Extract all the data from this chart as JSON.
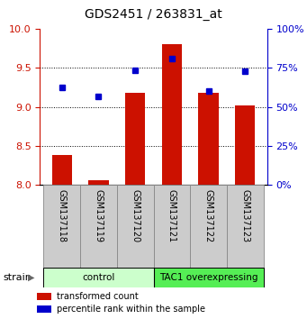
{
  "title": "GDS2451 / 263831_at",
  "samples": [
    "GSM137118",
    "GSM137119",
    "GSM137120",
    "GSM137121",
    "GSM137122",
    "GSM137123"
  ],
  "bar_values": [
    8.38,
    8.06,
    9.18,
    9.8,
    9.18,
    9.02
  ],
  "dot_values": [
    9.25,
    9.13,
    9.47,
    9.62,
    9.2,
    9.46
  ],
  "bar_color": "#cc1100",
  "dot_color": "#0000cc",
  "ylim_left": [
    8.0,
    10.0
  ],
  "ylim_right": [
    0,
    100
  ],
  "yticks_left": [
    8.0,
    8.5,
    9.0,
    9.5,
    10.0
  ],
  "yticks_right": [
    0,
    25,
    50,
    75,
    100
  ],
  "gridlines": [
    8.5,
    9.0,
    9.5
  ],
  "groups": [
    {
      "label": "control",
      "indices": [
        0,
        1,
        2
      ],
      "color": "#ccffcc"
    },
    {
      "label": "TAC1 overexpressing",
      "indices": [
        3,
        4,
        5
      ],
      "color": "#55ee55"
    }
  ],
  "group_label": "strain",
  "legend_items": [
    {
      "label": "transformed count",
      "color": "#cc1100"
    },
    {
      "label": "percentile rank within the sample",
      "color": "#0000cc"
    }
  ],
  "bar_width": 0.55,
  "sample_box_color": "#cccccc",
  "sample_box_edge": "#888888"
}
